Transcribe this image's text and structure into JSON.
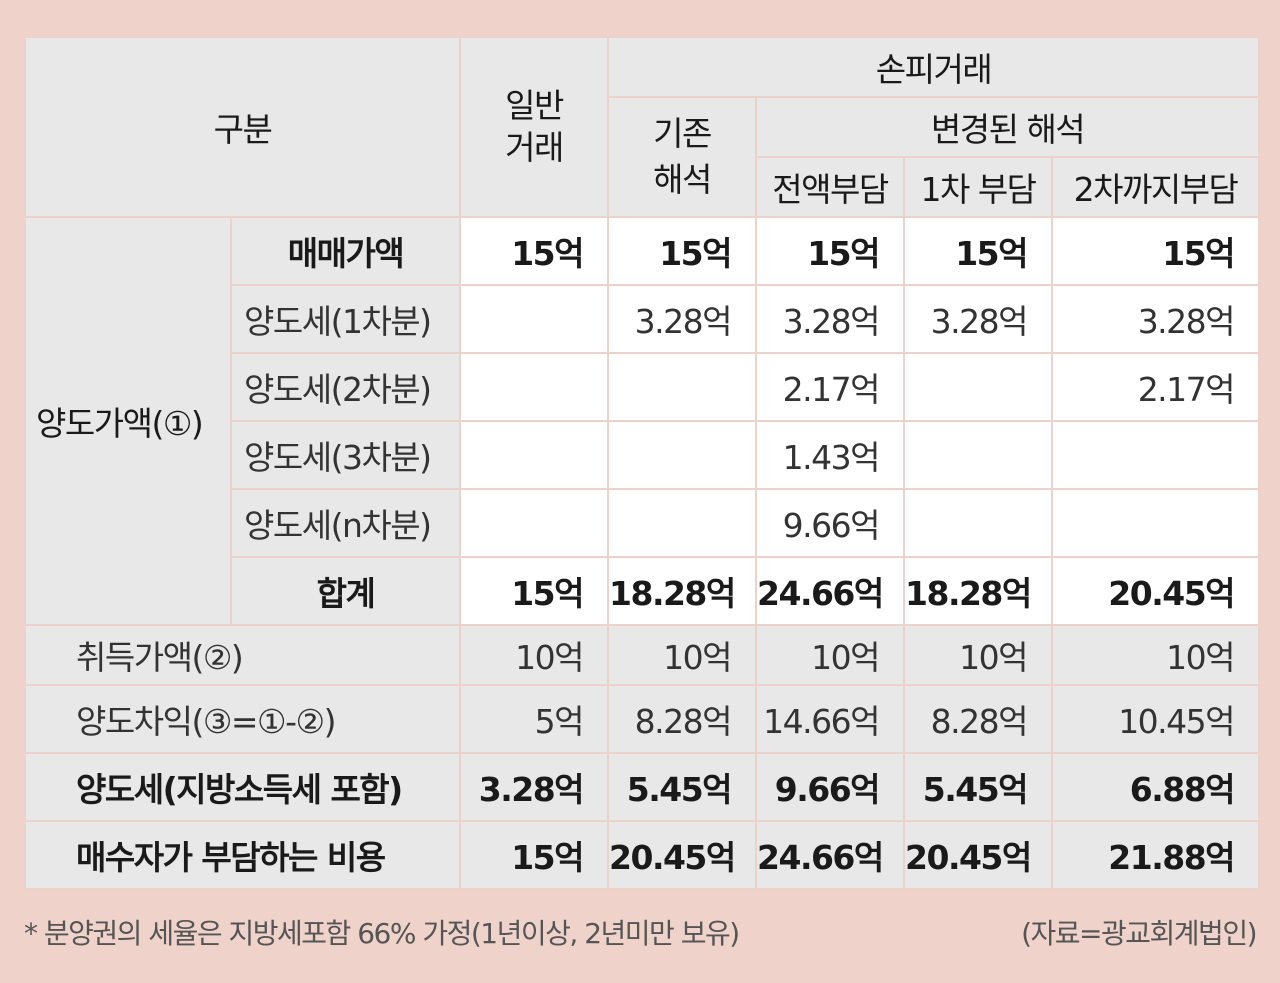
{
  "header": {
    "category": "구분",
    "general": "일반\n거래",
    "loss": "손피거래",
    "existing": "기존\n해석",
    "changed": "변경된 해석",
    "sub": [
      "전액부담",
      "1차 부담",
      "2차까지부담"
    ]
  },
  "group_label": "양도가액(①)",
  "rows": [
    {
      "label": "매매가액",
      "values": [
        "15억",
        "15억",
        "15억",
        "15억",
        "15억"
      ]
    },
    {
      "label": "양도세(1차분)",
      "values": [
        "",
        "3.28억",
        "3.28억",
        "3.28억",
        "3.28억"
      ]
    },
    {
      "label": "양도세(2차분)",
      "values": [
        "",
        "",
        "2.17억",
        "",
        "2.17억"
      ]
    },
    {
      "label": "양도세(3차분)",
      "values": [
        "",
        "",
        "1.43억",
        "",
        ""
      ]
    },
    {
      "label": "양도세(n차분)",
      "values": [
        "",
        "",
        "9.66억",
        "",
        ""
      ]
    },
    {
      "label": "합계",
      "values": [
        "15억",
        "18.28억",
        "24.66억",
        "18.28억",
        "20.45억"
      ]
    }
  ],
  "bottom_rows": [
    {
      "label": "취득가액(②)",
      "values": [
        "10억",
        "10억",
        "10억",
        "10억",
        "10억"
      ]
    },
    {
      "label": "양도차익(③=①-②)",
      "values": [
        "5억",
        "8.28억",
        "14.66억",
        "8.28억",
        "10.45억"
      ]
    },
    {
      "label": "양도세(지방소득세 포함)",
      "values": [
        "3.28억",
        "5.45억",
        "9.66억",
        "5.45억",
        "6.88억"
      ]
    },
    {
      "label": "매수자가 부담하는 비용",
      "values": [
        "15억",
        "20.45억",
        "24.66억",
        "20.45억",
        "21.88억"
      ]
    }
  ],
  "footnote": "* 분양권의 세율은 지방세포함 66% 가정(1년이상, 2년미만 보유)",
  "source": "(자료=광교회계법인)"
}
